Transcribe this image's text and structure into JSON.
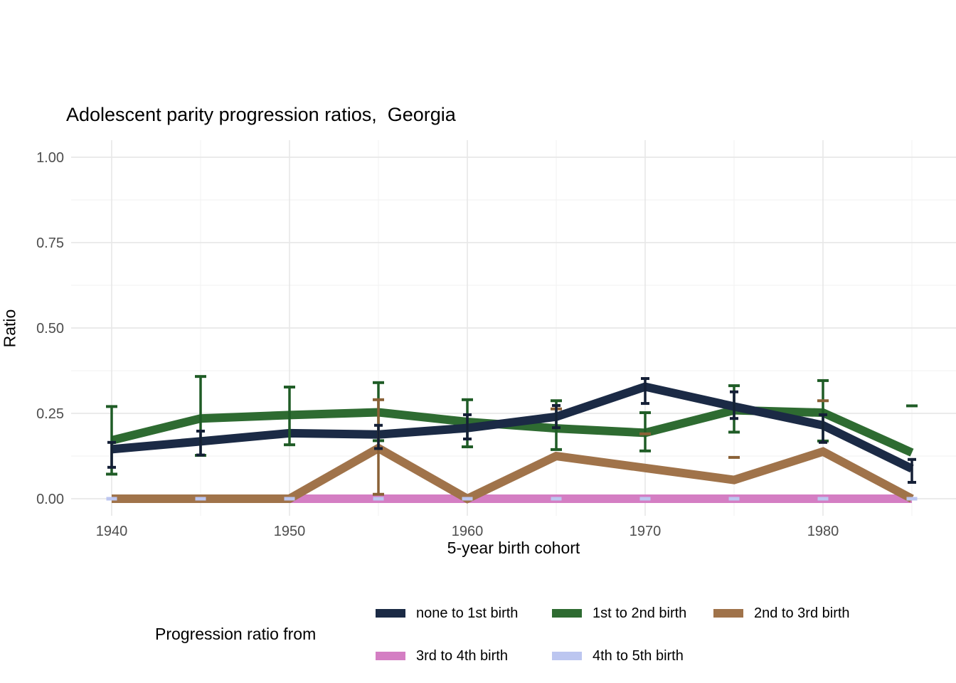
{
  "title": "Adolescent parity progression ratios,  Georgia",
  "chart_data": {
    "type": "line",
    "title": "Adolescent parity progression ratios,  Georgia",
    "xlabel": "5-year birth cohort",
    "ylabel": "Ratio",
    "x": [
      1940,
      1945,
      1950,
      1955,
      1960,
      1965,
      1970,
      1975,
      1980,
      1985
    ],
    "xticks": [
      1940,
      1950,
      1960,
      1970,
      1980
    ],
    "ylim": [
      0,
      1
    ],
    "yticks": [
      0,
      0.25,
      0.5,
      0.75,
      1
    ],
    "ytick_labels": [
      "0.00",
      "0.25",
      "0.50",
      "0.75",
      "1.00"
    ],
    "grid": "major and minor, light gray, no axis lines",
    "legend": {
      "title": "Progression ratio from",
      "position": "bottom"
    },
    "colors": {
      "grid_major": "#e8e8e8",
      "grid_minor": "#f2f2f2",
      "tick_text": "#4d4d4d",
      "text": "#000000"
    },
    "series": [
      {
        "name": "none to 1st birth",
        "color": "#1b2a45",
        "err_color": "#141f36",
        "values": [
          0.145,
          0.168,
          0.192,
          0.188,
          0.207,
          0.24,
          0.328,
          0.27,
          0.215,
          0.088
        ],
        "err": [
          [
            0.092,
            0.165
          ],
          [
            0.128,
            0.198
          ],
          null,
          [
            0.147,
            0.215
          ],
          [
            0.175,
            0.246
          ],
          [
            0.208,
            0.273
          ],
          [
            0.279,
            0.352
          ],
          [
            0.235,
            0.313
          ],
          [
            0.165,
            0.246
          ],
          [
            0.048,
            0.115
          ]
        ],
        "caps": []
      },
      {
        "name": "1st to 2nd birth",
        "color": "#2e6b31",
        "err_color": "#1f5c26",
        "values": [
          0.171,
          0.235,
          0.245,
          0.253,
          0.225,
          0.206,
          0.193,
          0.259,
          0.252,
          0.135
        ],
        "err": [
          [
            0.072,
            0.27
          ],
          [
            0.127,
            0.358
          ],
          [
            0.158,
            0.327
          ],
          [
            0.17,
            0.34
          ],
          [
            0.152,
            0.29
          ],
          [
            0.144,
            0.287
          ],
          [
            0.14,
            0.252
          ],
          [
            0.195,
            0.331
          ],
          [
            0.169,
            0.346
          ],
          null
        ],
        "caps": [
          {
            "x": 1985,
            "value": 0.272
          }
        ]
      },
      {
        "name": "2nd to 3rd birth",
        "color": "#a0734a",
        "err_color": "#8a6137",
        "values": [
          0,
          0,
          0,
          0.148,
          0,
          0.125,
          0.09,
          0.055,
          0.138,
          0
        ],
        "err": [
          null,
          null,
          null,
          [
            0.013,
            0.29
          ],
          null,
          null,
          null,
          null,
          null,
          null
        ],
        "caps": [
          {
            "x": 1965,
            "value": 0.263
          },
          {
            "x": 1970,
            "value": 0.19
          },
          {
            "x": 1975,
            "value": 0.121
          },
          {
            "x": 1980,
            "value": 0.287
          }
        ]
      },
      {
        "name": "3rd to 4th birth",
        "color": "#d47ec3",
        "err_color": "#d47ec3",
        "values": [
          0,
          0,
          0,
          0,
          0,
          0,
          0,
          0,
          0,
          0
        ],
        "err": [
          null,
          null,
          null,
          null,
          null,
          null,
          null,
          null,
          null,
          null
        ],
        "caps": []
      },
      {
        "name": "4th to 5th birth",
        "color": "#bcc6f0",
        "err_color": "#bcc6f0",
        "values": [
          0,
          0,
          0,
          0,
          0,
          0,
          0,
          0,
          0,
          0
        ],
        "err": [
          null,
          null,
          null,
          null,
          null,
          null,
          null,
          null,
          null,
          null
        ],
        "caps": [
          {
            "x": 1940,
            "value": 0
          },
          {
            "x": 1945,
            "value": 0
          },
          {
            "x": 1950,
            "value": 0
          },
          {
            "x": 1955,
            "value": 0
          },
          {
            "x": 1960,
            "value": 0
          },
          {
            "x": 1965,
            "value": 0
          },
          {
            "x": 1970,
            "value": 0
          },
          {
            "x": 1975,
            "value": 0
          },
          {
            "x": 1980,
            "value": 0
          },
          {
            "x": 1985,
            "value": 0
          }
        ]
      }
    ]
  }
}
